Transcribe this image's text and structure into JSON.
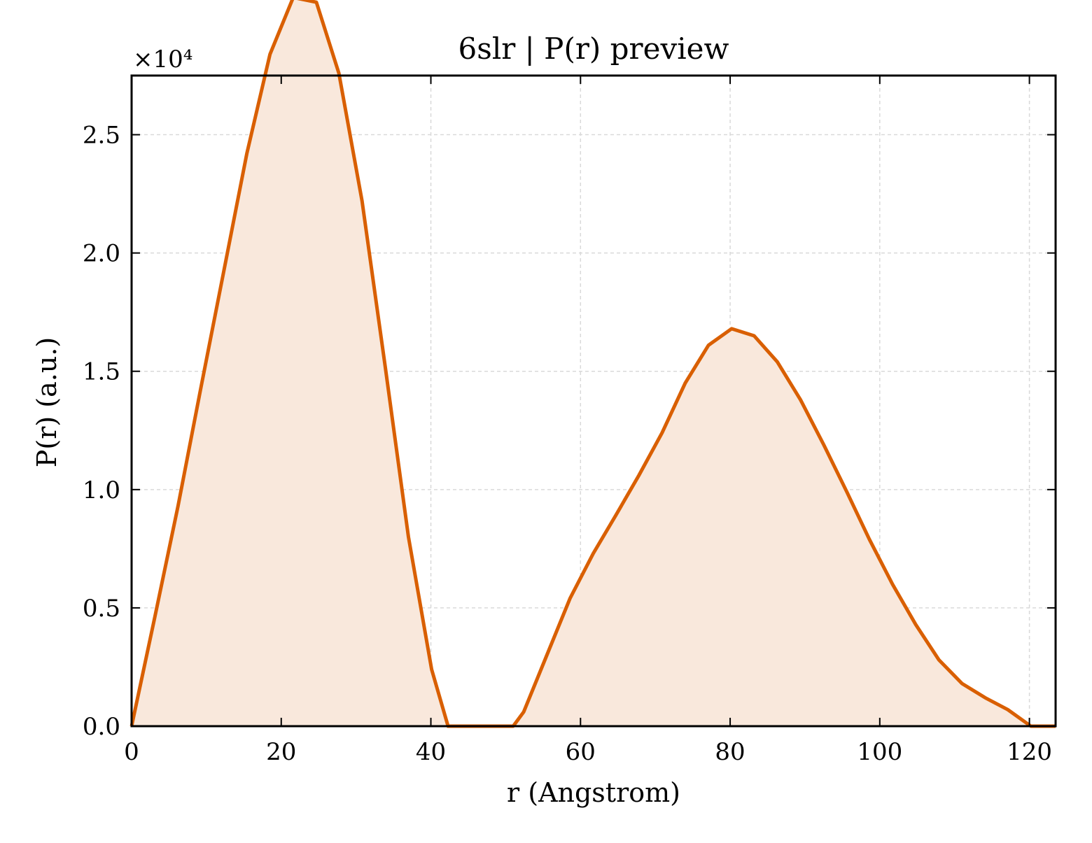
{
  "chart_data": {
    "type": "area",
    "title": "6slr | P(r) preview",
    "xlabel": "r (Angstrom)",
    "ylabel": "P(r) (a.u.)",
    "y_multiplier_label": "×10⁴",
    "xlim": [
      0,
      123.5
    ],
    "ylim": [
      0,
      2.75
    ],
    "xticks": [
      0,
      20,
      40,
      60,
      80,
      100,
      120
    ],
    "xtick_labels": [
      "0",
      "20",
      "40",
      "60",
      "80",
      "100",
      "120"
    ],
    "yticks": [
      0,
      0.5,
      1.0,
      1.5,
      2.0,
      2.5
    ],
    "ytick_labels": [
      "0.0",
      "0.5",
      "1.0",
      "1.5",
      "2.0",
      "2.5"
    ],
    "grid": true,
    "colors": {
      "line": "#d95f02",
      "fill": "#f9e8dc",
      "grid": "#d9d9d9",
      "axes": "#000000"
    },
    "series": [
      {
        "x": [
          0,
          3.1,
          6.2,
          9.2,
          12.3,
          15.4,
          18.5,
          21.6,
          24.7,
          27.7,
          30.8,
          33.9,
          37.0,
          40.1,
          42.3,
          51.0,
          52.4,
          55.5,
          58.6,
          61.7,
          64.7,
          67.8,
          70.9,
          74.0,
          77.1,
          80.2,
          83.2,
          86.3,
          89.4,
          92.5,
          95.6,
          98.6,
          101.7,
          104.8,
          107.9,
          111.0,
          114.1,
          117.1,
          120.2,
          123.5
        ],
        "values": [
          0,
          0.46,
          0.93,
          1.42,
          1.92,
          2.42,
          2.84,
          3.08,
          3.06,
          2.76,
          2.22,
          1.52,
          0.8,
          0.24,
          0,
          0,
          0.06,
          0.3,
          0.54,
          0.73,
          0.89,
          1.06,
          1.24,
          1.45,
          1.61,
          1.68,
          1.65,
          1.54,
          1.38,
          1.19,
          0.99,
          0.79,
          0.6,
          0.43,
          0.28,
          0.18,
          0.12,
          0.07,
          0,
          0
        ]
      }
    ]
  }
}
